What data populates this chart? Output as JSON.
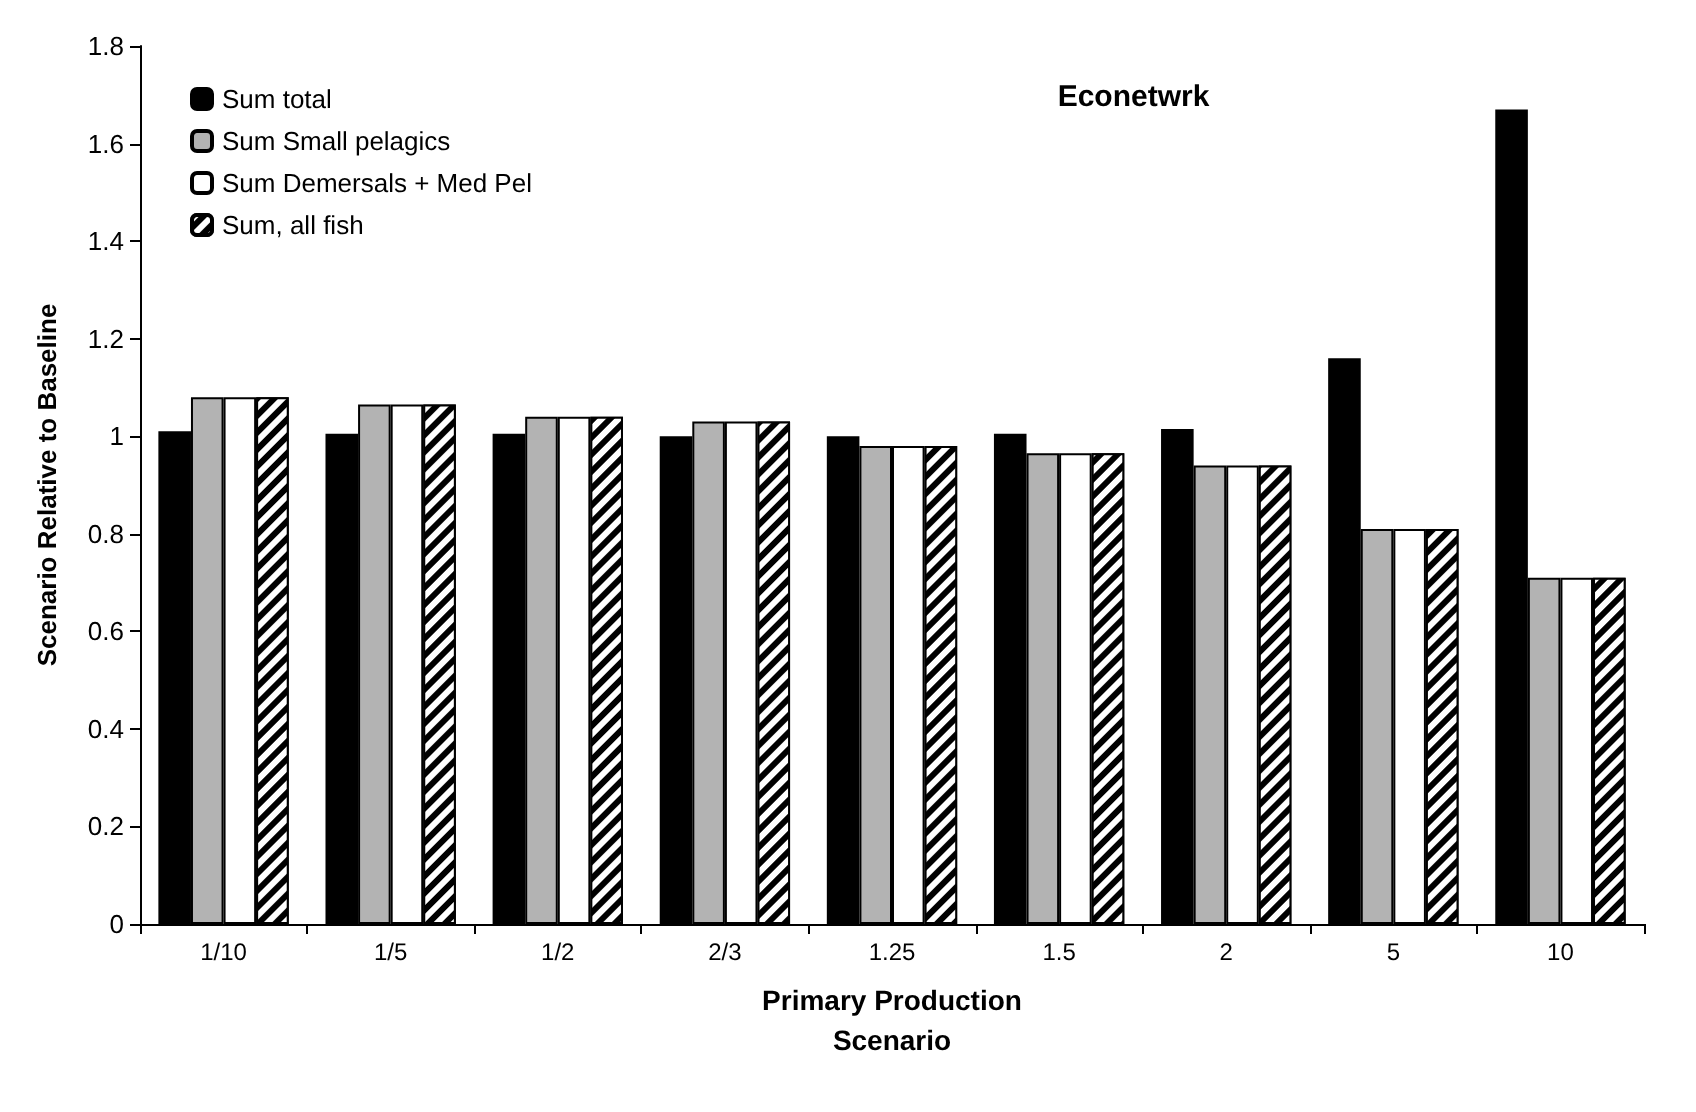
{
  "chart_data": {
    "type": "bar",
    "title": "Econetwrk",
    "xlabel": "Primary Production\nScenario",
    "ylabel": "Scenario Relative to Baseline",
    "categories": [
      "1/10",
      "1/5",
      "1/2",
      "2/3",
      "1.25",
      "1.5",
      "2",
      "5",
      "10"
    ],
    "series": [
      {
        "name": "Sum total",
        "color": "#000000",
        "values": [
          1.01,
          1.005,
          1.005,
          1.0,
          1.0,
          1.005,
          1.015,
          1.16,
          1.67
        ]
      },
      {
        "name": "Sum Small pelagics",
        "color": "#b3b3b3",
        "values": [
          1.08,
          1.065,
          1.04,
          1.03,
          0.98,
          0.965,
          0.94,
          0.81,
          0.71
        ]
      },
      {
        "name": "Sum Demersals + Med Pel",
        "color": "#ffffff",
        "values": [
          1.08,
          1.065,
          1.04,
          1.03,
          0.98,
          0.965,
          0.94,
          0.81,
          0.71
        ]
      },
      {
        "name": "Sum, all fish",
        "color": "#000000",
        "values": [
          1.08,
          1.065,
          1.04,
          1.03,
          0.98,
          0.965,
          0.94,
          0.81,
          0.71
        ]
      }
    ],
    "ylim": [
      0,
      1.8
    ],
    "yticks": [
      0,
      0.2,
      0.4,
      0.6,
      0.8,
      1,
      1.2,
      1.4,
      1.6,
      1.8
    ],
    "grid": false,
    "legend": "top left"
  }
}
